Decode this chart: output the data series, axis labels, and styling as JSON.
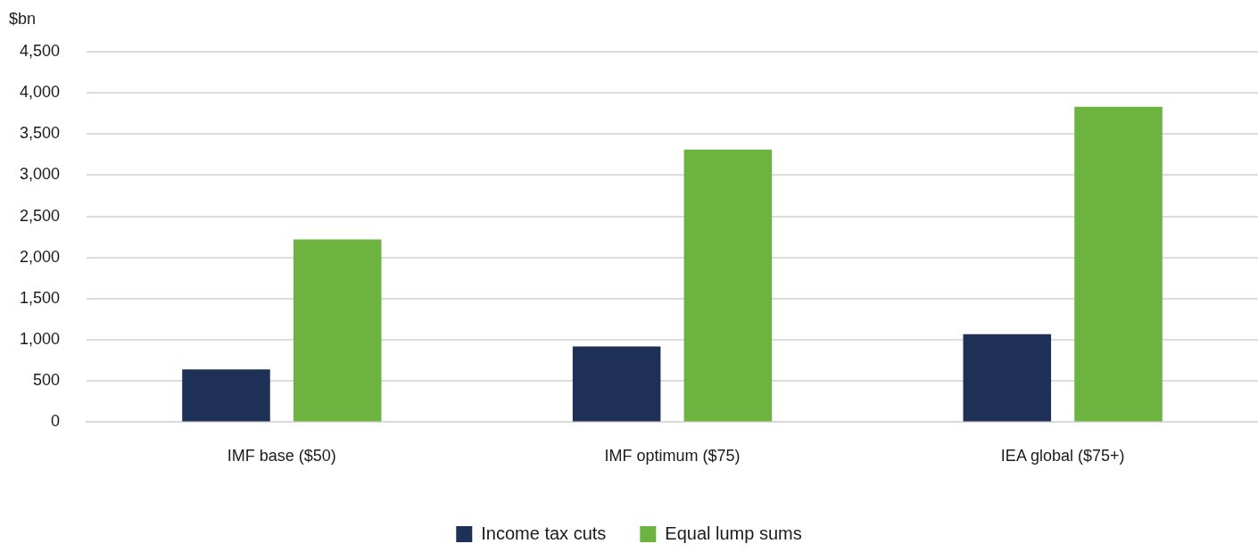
{
  "chart_data": {
    "type": "bar",
    "ylabel": "$bn",
    "categories": [
      "IMF base ($50)",
      "IMF optimum ($75)",
      "IEA global ($75+)"
    ],
    "series": [
      {
        "name": "Income tax cuts",
        "color": "#1f3057",
        "values": [
          640,
          920,
          1070
        ]
      },
      {
        "name": "Equal lump sums",
        "color": "#6db33f",
        "values": [
          2220,
          3310,
          3830
        ]
      }
    ],
    "ylim": [
      0,
      4500
    ],
    "yticks": [
      0,
      500,
      {
        "value": 1000,
        "label": "1,000"
      },
      {
        "value": 1500,
        "label": "1,500"
      },
      {
        "value": 2000,
        "label": "2,000"
      },
      {
        "value": 2500,
        "label": "2,500"
      },
      {
        "value": 3000,
        "label": "3,000"
      },
      {
        "value": 3500,
        "label": "3,500"
      },
      {
        "value": 4000,
        "label": "4,000"
      },
      {
        "value": 4500,
        "label": "4,500"
      }
    ],
    "grid": "y",
    "legend": "bottom"
  }
}
